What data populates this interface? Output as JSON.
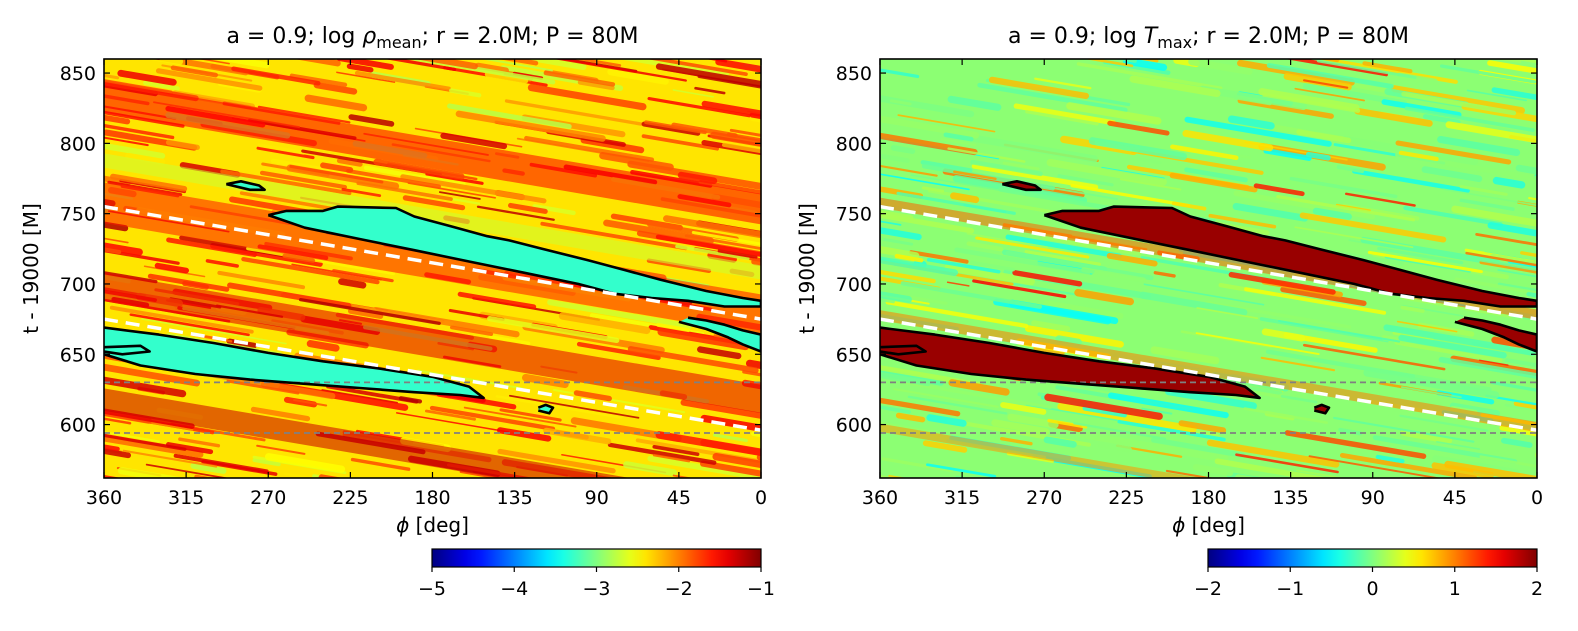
{
  "chart_data": [
    {
      "type": "heatmap",
      "title_prefix": "a = 0.9; log ",
      "title_var": "ρ",
      "title_sub": "mean",
      "title_suffix": "; r = 2.0M; P = 80M",
      "xlabel_sym": "ϕ",
      "xlabel_unit": " [deg]",
      "ylabel": "t - 19000 [M]",
      "xlim": [
        360,
        0
      ],
      "ylim": [
        562,
        860
      ],
      "xticks": [
        360,
        315,
        270,
        225,
        180,
        135,
        90,
        45,
        0
      ],
      "yticks": [
        600,
        650,
        700,
        750,
        800,
        850
      ],
      "colorbar": {
        "range": [
          -5,
          -1
        ],
        "ticks": [
          "−5",
          "−4",
          "−3",
          "−2",
          "−1"
        ],
        "cmap": "jet"
      },
      "field_description": "mostly yellow-orange (-2.5 to -1.5) diagonal streaks, cyan (-3.3) inside contour bands",
      "base_value": -2.4,
      "band_value": -3.3,
      "dashed_lines": [
        {
          "color": "#ffffff",
          "points": [
            [
              360,
              755
            ],
            [
              0,
              675
            ]
          ]
        },
        {
          "color": "#ffffff",
          "points": [
            [
              360,
              675
            ],
            [
              0,
              596
            ]
          ]
        }
      ],
      "hlines": [
        {
          "y": 630,
          "color": "#808080"
        },
        {
          "y": 594,
          "color": "#808080"
        }
      ],
      "contours": [
        {
          "points": [
            [
              270,
              749
            ],
            [
              260,
              752
            ],
            [
              240,
              752
            ],
            [
              232,
              755
            ],
            [
              200,
              754
            ],
            [
              190,
              748
            ],
            [
              170,
              741
            ],
            [
              150,
              734
            ],
            [
              138,
              731
            ],
            [
              120,
              725
            ],
            [
              95,
              717
            ],
            [
              75,
              710
            ],
            [
              55,
              703
            ],
            [
              30,
              695
            ],
            [
              10,
              690
            ],
            [
              0,
              688
            ],
            [
              0,
              684
            ],
            [
              20,
              684
            ],
            [
              40,
              688
            ],
            [
              60,
              690
            ],
            [
              80,
              693
            ],
            [
              100,
              700
            ],
            [
              130,
              708
            ],
            [
              160,
              716
            ],
            [
              190,
              724
            ],
            [
              220,
              732
            ],
            [
              250,
              740
            ],
            [
              270,
              749
            ]
          ]
        },
        {
          "points": [
            [
              293,
              771
            ],
            [
              285,
              773
            ],
            [
              275,
              770
            ],
            [
              272,
              767
            ],
            [
              280,
              767
            ],
            [
              293,
              771
            ]
          ]
        },
        {
          "points": [
            [
              360,
              669
            ],
            [
              330,
              664
            ],
            [
              300,
              658
            ],
            [
              270,
              651
            ],
            [
              240,
              645
            ],
            [
              210,
              640
            ],
            [
              180,
              634
            ],
            [
              160,
              627
            ],
            [
              152,
              619
            ],
            [
              165,
              621
            ],
            [
              190,
              623
            ],
            [
              220,
              626
            ],
            [
              250,
              629
            ],
            [
              280,
              632
            ],
            [
              310,
              636
            ],
            [
              340,
              642
            ],
            [
              360,
              650
            ]
          ]
        },
        {
          "points": [
            [
              360,
              655
            ],
            [
              340,
              656
            ],
            [
              335,
              652
            ],
            [
              350,
              650
            ],
            [
              360,
              652
            ]
          ]
        },
        {
          "points": [
            [
              122,
              612
            ],
            [
              118,
              614
            ],
            [
              114,
              612
            ],
            [
              116,
              608
            ],
            [
              122,
              610
            ]
          ]
        },
        {
          "points": [
            [
              40,
              676
            ],
            [
              30,
              674
            ],
            [
              20,
              671
            ],
            [
              10,
              667
            ],
            [
              0,
              664
            ],
            [
              0,
              652
            ],
            [
              10,
              657
            ],
            [
              18,
              662
            ],
            [
              30,
              668
            ],
            [
              45,
              673
            ]
          ]
        }
      ]
    },
    {
      "type": "heatmap",
      "title_prefix": "a = 0.9; log ",
      "title_var": "T",
      "title_sub": "max",
      "title_suffix": "; r = 2.0M; P = 80M",
      "xlabel_sym": "ϕ",
      "xlabel_unit": " [deg]",
      "ylabel": "t - 19000 [M]",
      "xlim": [
        360,
        0
      ],
      "ylim": [
        562,
        860
      ],
      "xticks": [
        360,
        315,
        270,
        225,
        180,
        135,
        90,
        45,
        0
      ],
      "yticks": [
        600,
        650,
        700,
        750,
        800,
        850
      ],
      "colorbar": {
        "range": [
          -2,
          2
        ],
        "ticks": [
          "−2",
          "−1",
          "0",
          "1",
          "2"
        ],
        "cmap": "jet"
      },
      "field_description": "mostly cyan-green (~0) background, dark red (~1.9) inside contour bands with yellow halos",
      "base_value": 0.05,
      "band_value": 1.9,
      "dashed_lines": [
        {
          "color": "#ffffff",
          "points": [
            [
              360,
              755
            ],
            [
              0,
              675
            ]
          ]
        },
        {
          "color": "#ffffff",
          "points": [
            [
              360,
              675
            ],
            [
              0,
              596
            ]
          ]
        }
      ],
      "hlines": [
        {
          "y": 630,
          "color": "#808080"
        },
        {
          "y": 594,
          "color": "#808080"
        }
      ],
      "contours": [
        {
          "points": [
            [
              270,
              749
            ],
            [
              260,
              752
            ],
            [
              240,
              752
            ],
            [
              232,
              755
            ],
            [
              200,
              754
            ],
            [
              190,
              748
            ],
            [
              170,
              741
            ],
            [
              150,
              734
            ],
            [
              138,
              731
            ],
            [
              120,
              725
            ],
            [
              95,
              717
            ],
            [
              75,
              710
            ],
            [
              55,
              703
            ],
            [
              30,
              695
            ],
            [
              10,
              690
            ],
            [
              0,
              688
            ],
            [
              0,
              684
            ],
            [
              20,
              684
            ],
            [
              40,
              688
            ],
            [
              60,
              690
            ],
            [
              80,
              693
            ],
            [
              100,
              700
            ],
            [
              130,
              708
            ],
            [
              160,
              716
            ],
            [
              190,
              724
            ],
            [
              220,
              732
            ],
            [
              250,
              740
            ],
            [
              270,
              749
            ]
          ]
        },
        {
          "points": [
            [
              293,
              771
            ],
            [
              285,
              773
            ],
            [
              275,
              770
            ],
            [
              272,
              767
            ],
            [
              280,
              767
            ],
            [
              293,
              771
            ]
          ]
        },
        {
          "points": [
            [
              360,
              669
            ],
            [
              330,
              664
            ],
            [
              300,
              658
            ],
            [
              270,
              651
            ],
            [
              240,
              645
            ],
            [
              210,
              640
            ],
            [
              180,
              634
            ],
            [
              160,
              627
            ],
            [
              152,
              619
            ],
            [
              165,
              621
            ],
            [
              190,
              623
            ],
            [
              220,
              626
            ],
            [
              250,
              629
            ],
            [
              280,
              632
            ],
            [
              310,
              636
            ],
            [
              340,
              642
            ],
            [
              360,
              650
            ]
          ]
        },
        {
          "points": [
            [
              360,
              655
            ],
            [
              340,
              656
            ],
            [
              335,
              652
            ],
            [
              350,
              650
            ],
            [
              360,
              652
            ]
          ]
        },
        {
          "points": [
            [
              122,
              612
            ],
            [
              118,
              614
            ],
            [
              114,
              612
            ],
            [
              116,
              608
            ],
            [
              122,
              610
            ]
          ]
        },
        {
          "points": [
            [
              40,
              676
            ],
            [
              30,
              674
            ],
            [
              20,
              671
            ],
            [
              10,
              667
            ],
            [
              0,
              664
            ],
            [
              0,
              652
            ],
            [
              10,
              657
            ],
            [
              18,
              662
            ],
            [
              30,
              668
            ],
            [
              45,
              673
            ]
          ]
        }
      ]
    }
  ]
}
